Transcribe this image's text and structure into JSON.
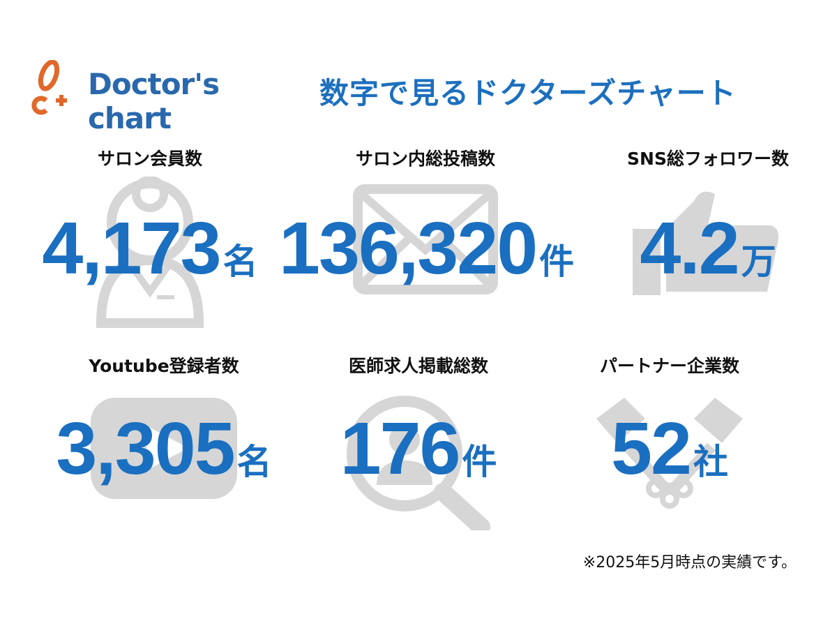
{
  "brand": {
    "logo_text": "Doctor's chart",
    "logo_mark": "C+",
    "colors": {
      "orange": "#e0682a",
      "blue": "#2a68ad"
    }
  },
  "title": "数字で見るドクターズチャート",
  "stats": [
    {
      "label": "サロン会員数",
      "value": "4,173",
      "unit": "名",
      "icon": "doctor-icon"
    },
    {
      "label": "サロン内総投稿数",
      "value": "136,320",
      "unit": "件",
      "icon": "envelope-icon"
    },
    {
      "label": "SNS総フォロワー数",
      "value": "4.2",
      "unit": "万",
      "icon": "thumbs-up-icon"
    },
    {
      "label": "Youtube登録者数",
      "value": "3,305",
      "unit": "名",
      "icon": "play-button-icon"
    },
    {
      "label": "医師求人掲載総数",
      "value": "176",
      "unit": "件",
      "icon": "magnifier-person-icon"
    },
    {
      "label": "パートナー企業数",
      "value": "52",
      "unit": "社",
      "icon": "handshake-icon"
    }
  ],
  "note": "※2025年5月時点の実績です。",
  "colors": {
    "value": "#1a6fc0",
    "icon": "#d6d6d6"
  }
}
